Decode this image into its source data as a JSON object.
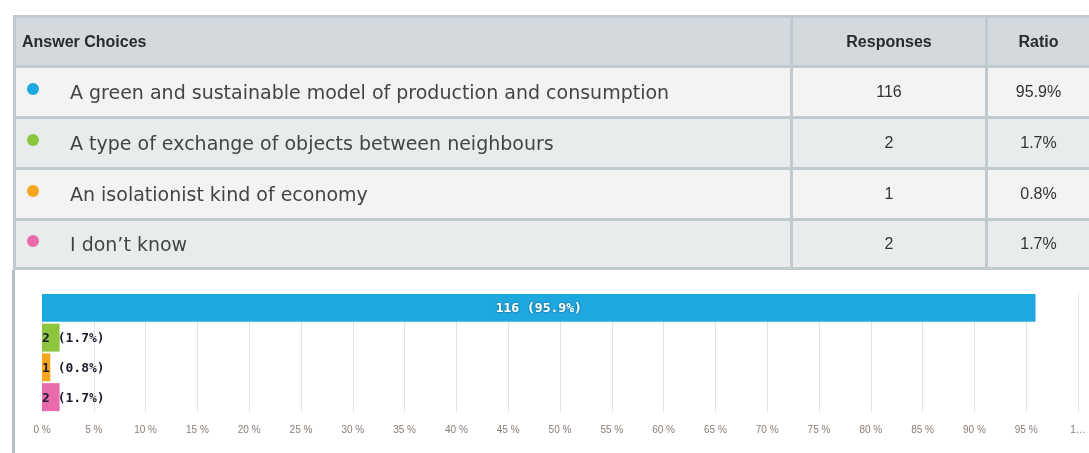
{
  "chart_data": {
    "type": "bar",
    "orientation": "horizontal",
    "categories": [
      null,
      null,
      null,
      null
    ],
    "values": [
      95.9,
      1.7,
      0.8,
      1.7
    ],
    "colors": [
      "#1ea8e0",
      "#8cc63f",
      "#f7a51f",
      "#e96bab"
    ],
    "value_labels": [
      "116 (95.9%)",
      "2 (1.7%)",
      "1 (0.8%)",
      "2 (1.7%)"
    ],
    "xlim": [
      0,
      100
    ],
    "xticks": [
      {
        "value": 0,
        "label": "0 %"
      },
      {
        "value": 5,
        "label": "5 %"
      },
      {
        "value": 10,
        "label": "10 %"
      },
      {
        "value": 15,
        "label": "15 %"
      },
      {
        "value": 20,
        "label": "20 %"
      },
      {
        "value": 25,
        "label": "25 %"
      },
      {
        "value": 30,
        "label": "30 %"
      },
      {
        "value": 35,
        "label": "35 %"
      },
      {
        "value": 40,
        "label": "40 %"
      },
      {
        "value": 45,
        "label": "45 %"
      },
      {
        "value": 50,
        "label": "50 %"
      },
      {
        "value": 55,
        "label": "55 %"
      },
      {
        "value": 60,
        "label": "60 %"
      },
      {
        "value": 65,
        "label": "65 %"
      },
      {
        "value": 70,
        "label": "70 %"
      },
      {
        "value": 75,
        "label": "75 %"
      },
      {
        "value": 80,
        "label": "80 %"
      },
      {
        "value": 85,
        "label": "85 %"
      },
      {
        "value": 90,
        "label": "90 %"
      },
      {
        "value": 95,
        "label": "95 %"
      },
      {
        "value": 100,
        "label": "1…"
      }
    ],
    "grid": "x",
    "tick_labels": "x",
    "annotations": [
      "Answer Choices",
      "Responses",
      "Ratio",
      "A green and sustainable model of production and consumption",
      "116",
      "95.9%",
      "A type of exchange of objects between neighbours",
      "2",
      "1.7%",
      "An isolationist kind of economy",
      "1",
      "0.8%",
      "I don’t know",
      "2",
      "1.7%"
    ]
  }
}
